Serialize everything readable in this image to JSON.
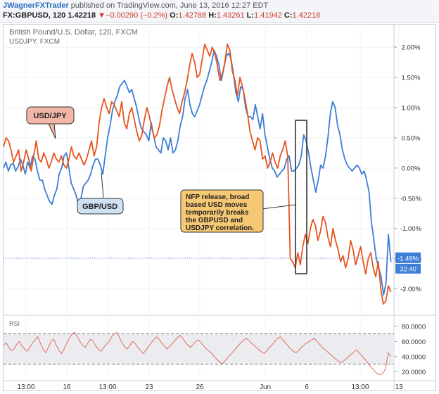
{
  "header": {
    "author": "JWagnerFXTrader",
    "published_text": "published on TradingView.com, June 13, 2016 12:27 EDT",
    "symbol": "FX:GBPUSD, 120",
    "last": "1.42218",
    "change_arrow": "▼",
    "change": "−0.00290 (−0.2%)",
    "o_label": "O:",
    "o": "1.42788",
    "h_label": "H:",
    "h": "1.43261",
    "l_label": "L:",
    "l": "1.41942",
    "c_label": "C:",
    "c": "1.42218"
  },
  "chart_data": {
    "type": "line",
    "title": "British Pound/U.S. Dollar, 120, FXCM",
    "subtitle": "USDJPY, FXCM",
    "y_axis": {
      "ticks": [
        "2.00%",
        "1.50%",
        "1.00%",
        "0.50%",
        "0.00%",
        "-0.50%",
        "-1.00%",
        "-1.50%",
        "-2.00%"
      ],
      "tick_values": [
        2.0,
        1.5,
        1.0,
        0.5,
        0.0,
        -0.5,
        -1.0,
        -1.5,
        -2.0
      ],
      "ylim": [
        -2.4,
        2.35
      ]
    },
    "x_axis": {
      "ticks": [
        "13:00",
        "16",
        "13:00",
        "23",
        "26",
        "Jun",
        "6",
        "13:00",
        "13"
      ]
    },
    "price_badge": "-1.49%",
    "time_badge": "32:40",
    "series": [
      {
        "name": "GBP/USD",
        "color": "#3d7ed6",
        "values": [
          0.0,
          0.1,
          -0.05,
          0.05,
          0.08,
          -0.05,
          0.02,
          0.15,
          0.05,
          -0.1,
          0.1,
          0.0,
          0.2,
          0.15,
          -0.05,
          -0.2,
          -0.2,
          -0.35,
          -0.45,
          -0.55,
          -0.6,
          -0.45,
          -0.35,
          -0.1,
          0.0,
          0.2,
          0.25,
          0.0,
          -0.25,
          -0.35,
          -0.45,
          -0.6,
          -0.5,
          -0.3,
          -0.25,
          -0.2,
          -0.1,
          0.05,
          0.15,
          0.15,
          0.05,
          -0.1,
          0.2,
          0.5,
          0.7,
          0.95,
          1.1,
          1.2,
          1.35,
          1.4,
          1.45,
          1.35,
          1.25,
          1.3,
          1.15,
          1.0,
          0.8,
          0.65,
          0.6,
          0.55,
          0.45,
          0.75,
          0.55,
          0.35,
          0.3,
          0.25,
          0.5,
          0.45,
          0.3,
          0.5,
          0.25,
          0.3,
          0.45,
          0.7,
          0.85,
          1.15,
          1.3,
          1.05,
          0.9,
          0.85,
          0.95,
          1.05,
          1.2,
          1.35,
          1.45,
          1.6,
          1.75,
          1.95,
          1.85,
          1.7,
          1.45,
          1.65,
          1.85,
          1.9,
          1.8,
          1.55,
          1.25,
          1.1,
          1.35,
          1.3,
          1.0,
          0.85,
          0.85,
          0.8,
          1.05,
          0.85,
          0.65,
          0.9,
          0.55,
          0.35,
          0.15,
          0.0,
          -0.05,
          -0.15,
          -0.1,
          -0.05,
          0.0,
          0.15,
          0.2,
          -0.05,
          -0.05,
          0.0,
          0.05,
          0.2,
          0.55,
          0.45,
          0.25,
          0.0,
          -0.2,
          -0.4,
          -0.2,
          0.05,
          0.0,
          0.2,
          0.5,
          0.9,
          1.1,
          1.0,
          0.7,
          0.55,
          0.3,
          0.15,
          0.05,
          0.0,
          -0.05,
          0.0,
          0.05,
          0.0,
          -0.1,
          -0.05,
          -0.2,
          -0.4,
          -0.9,
          -1.2,
          -1.5,
          -1.65,
          -1.8,
          -2.1,
          -1.9,
          -1.1,
          -1.55
        ],
        "x_start": 0.0,
        "x_end": 0.992
      },
      {
        "name": "USD/JPY",
        "color": "#e8541e",
        "values": [
          0.35,
          0.5,
          0.45,
          0.3,
          0.1,
          0.2,
          0.3,
          -0.05,
          0.1,
          0.3,
          0.15,
          -0.05,
          0.2,
          0.45,
          0.15,
          0.1,
          0.25,
          0.15,
          0.0,
          0.1,
          0.25,
          0.15,
          0.1,
          0.2,
          0.05,
          0.0,
          0.15,
          0.35,
          0.2,
          0.15,
          0.25,
          0.15,
          0.05,
          0.15,
          0.3,
          0.45,
          0.2,
          0.35,
          0.75,
          1.0,
          1.15,
          1.0,
          0.9,
          1.1,
          1.05,
          0.95,
          0.85,
          1.1,
          0.75,
          0.65,
          0.9,
          1.0,
          0.8,
          0.6,
          0.45,
          0.55,
          0.8,
          1.0,
          0.85,
          0.65,
          0.5,
          0.55,
          0.7,
          0.95,
          1.15,
          1.35,
          1.5,
          1.3,
          1.15,
          1.0,
          0.9,
          1.1,
          1.25,
          1.45,
          1.7,
          1.9,
          1.75,
          1.5,
          1.55,
          1.8,
          2.05,
          1.95,
          1.85,
          2.0,
          1.9,
          1.7,
          1.45,
          1.55,
          1.75,
          2.05,
          1.95,
          1.6,
          1.45,
          1.2,
          1.5,
          1.35,
          1.15,
          0.9,
          0.6,
          0.45,
          0.3,
          0.5,
          0.45,
          0.15,
          0.2,
          0.0,
          0.1,
          0.25,
          0.1,
          0.0,
          0.2,
          0.3,
          0.45,
          0.2,
          -1.5,
          -1.55,
          -1.65,
          -1.4,
          -1.6,
          -1.3,
          -1.1,
          -1.25,
          -1.0,
          -0.85,
          -0.95,
          -1.2,
          -1.05,
          -0.8,
          -0.9,
          -1.15,
          -1.3,
          -1.0,
          -1.2,
          -1.35,
          -1.55,
          -1.45,
          -1.65,
          -1.5,
          -1.2,
          -1.35,
          -1.6,
          -1.45,
          -1.3,
          -1.55,
          -1.75,
          -1.5,
          -1.4,
          -1.65,
          -1.8,
          -1.55,
          -2.0,
          -2.25,
          -2.2,
          -1.95,
          -2.05
        ],
        "x_start": 0.0,
        "x_end": 0.992
      }
    ],
    "annotations": [
      {
        "text": "USD/JPY",
        "bg": "#f3b6a6"
      },
      {
        "text": "GBP/USD",
        "bg": "#cfe0f3"
      },
      {
        "text": "NFP release, broad based USD moves temporarily breaks the GBPUSD and USDJPY correlation.",
        "lines": [
          "NFP release, broad",
          "based USD moves",
          "temporarily breaks",
          "the GBPUSD and",
          "USDJPY correlation."
        ],
        "bg": "#f7c873"
      }
    ],
    "rsi": {
      "title": "RSI",
      "ticks": [
        "80.0000",
        "60.0000",
        "40.0000",
        "20.0000"
      ],
      "tick_values": [
        80,
        60,
        40,
        20
      ],
      "ylim": [
        10,
        90
      ],
      "bands": [
        70,
        30
      ],
      "color": "#e26d5a",
      "values": [
        55,
        58,
        52,
        48,
        50,
        56,
        60,
        54,
        50,
        47,
        52,
        58,
        62,
        66,
        58,
        50,
        45,
        52,
        60,
        63,
        55,
        48,
        44,
        50,
        58,
        64,
        70,
        72,
        66,
        60,
        55,
        52,
        58,
        63,
        60,
        54,
        50,
        47,
        52,
        56,
        60,
        66,
        70,
        72,
        65,
        58,
        53,
        50,
        55,
        60,
        57,
        52,
        48,
        44,
        48,
        53,
        58,
        62,
        66,
        63,
        58,
        54,
        50,
        53,
        57,
        61,
        65,
        68,
        64,
        59,
        55,
        52,
        56,
        60,
        62,
        58,
        54,
        50,
        47,
        44,
        40,
        36,
        33,
        30,
        34,
        38,
        42,
        46,
        50,
        54,
        58,
        61,
        64,
        62,
        58,
        55,
        52,
        49,
        46,
        44,
        48,
        52,
        56,
        60,
        64,
        66,
        62,
        58,
        54,
        50,
        47,
        45,
        48,
        52,
        55,
        58,
        60,
        62,
        64,
        60,
        56,
        52,
        49,
        46,
        43,
        40,
        37,
        34,
        32,
        34,
        37,
        40,
        43,
        46,
        49,
        45,
        41,
        37,
        33,
        28,
        24,
        20,
        17,
        16,
        18,
        24,
        45,
        40
      ]
    }
  }
}
